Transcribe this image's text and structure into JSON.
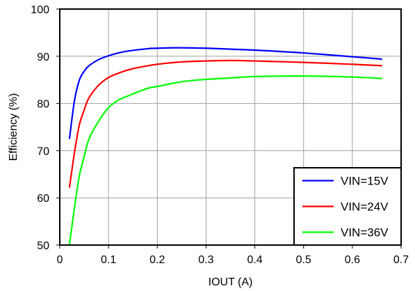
{
  "chart_data": {
    "type": "line",
    "title": "",
    "xlabel": "IOUT (A)",
    "ylabel": "Efficiency (%)",
    "xlim": [
      0,
      0.7
    ],
    "ylim": [
      50,
      100
    ],
    "xticks": [
      "0",
      "0.1",
      "0.2",
      "0.3",
      "0.4",
      "0.5",
      "0.6",
      "0.7"
    ],
    "yticks": [
      "50",
      "60",
      "70",
      "80",
      "90",
      "100"
    ],
    "grid": true,
    "legend_position": "bottom-right",
    "series": [
      {
        "name": "VIN=15V",
        "color": "#0000ff",
        "points": [
          [
            0.02,
            72.6
          ],
          [
            0.03,
            80.5
          ],
          [
            0.04,
            84.9
          ],
          [
            0.05,
            86.8
          ],
          [
            0.06,
            88.0
          ],
          [
            0.08,
            89.3
          ],
          [
            0.1,
            90.1
          ],
          [
            0.12,
            90.7
          ],
          [
            0.14,
            91.1
          ],
          [
            0.18,
            91.6
          ],
          [
            0.2,
            91.7
          ],
          [
            0.24,
            91.8
          ],
          [
            0.3,
            91.7
          ],
          [
            0.35,
            91.5
          ],
          [
            0.4,
            91.3
          ],
          [
            0.5,
            90.7
          ],
          [
            0.6,
            89.9
          ],
          [
            0.66,
            89.4
          ]
        ]
      },
      {
        "name": "VIN=24V",
        "color": "#ff0000",
        "points": [
          [
            0.02,
            62.3
          ],
          [
            0.03,
            69.5
          ],
          [
            0.04,
            75.4
          ],
          [
            0.05,
            78.6
          ],
          [
            0.06,
            81.2
          ],
          [
            0.08,
            83.9
          ],
          [
            0.1,
            85.5
          ],
          [
            0.12,
            86.4
          ],
          [
            0.14,
            87.1
          ],
          [
            0.16,
            87.6
          ],
          [
            0.2,
            88.3
          ],
          [
            0.25,
            88.8
          ],
          [
            0.3,
            89.0
          ],
          [
            0.35,
            89.1
          ],
          [
            0.4,
            89.0
          ],
          [
            0.5,
            88.7
          ],
          [
            0.6,
            88.3
          ],
          [
            0.66,
            88.0
          ]
        ]
      },
      {
        "name": "VIN=36V",
        "color": "#00ff00",
        "points": [
          [
            0.02,
            50.2
          ],
          [
            0.03,
            57.8
          ],
          [
            0.04,
            64.6
          ],
          [
            0.05,
            68.7
          ],
          [
            0.06,
            72.5
          ],
          [
            0.08,
            76.3
          ],
          [
            0.1,
            79.1
          ],
          [
            0.12,
            80.7
          ],
          [
            0.14,
            81.6
          ],
          [
            0.18,
            83.2
          ],
          [
            0.2,
            83.6
          ],
          [
            0.25,
            84.6
          ],
          [
            0.3,
            85.1
          ],
          [
            0.35,
            85.4
          ],
          [
            0.4,
            85.7
          ],
          [
            0.5,
            85.8
          ],
          [
            0.6,
            85.6
          ],
          [
            0.66,
            85.3
          ]
        ]
      }
    ]
  }
}
